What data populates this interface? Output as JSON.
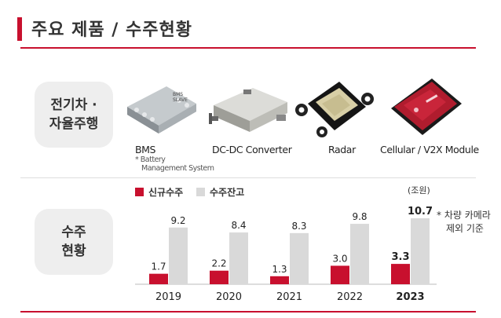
{
  "header": {
    "title": "주요 제품 / 수주현황"
  },
  "row_labels": {
    "products": [
      "전기차 ·",
      "자율주행"
    ],
    "orders": [
      "수주",
      "현황"
    ]
  },
  "products": [
    {
      "name": "BMS",
      "icon": "bms-module-icon"
    },
    {
      "name": "DC-DC Converter",
      "icon": "dc-dc-converter-icon"
    },
    {
      "name": "Radar",
      "icon": "radar-sensor-icon"
    },
    {
      "name": "Cellular / V2X Module",
      "icon": "v2x-module-icon"
    }
  ],
  "bms_chip_text": [
    "BMS",
    "SLAVE"
  ],
  "footnote": {
    "line1": "* Battery",
    "line2": "Management System"
  },
  "legend": {
    "new_orders": "신규수주",
    "backlog": "수주잔고"
  },
  "unit": "(조원)",
  "side_note": {
    "line1": "* 차량 카메라",
    "line2": "제외 기준"
  },
  "colors": {
    "accent": "#c8102e",
    "backlog": "#d9d9d9",
    "label_bg": "#eeeeee"
  },
  "chart_data": {
    "type": "bar",
    "categories": [
      "2019",
      "2020",
      "2021",
      "2022",
      "2023"
    ],
    "series": [
      {
        "name": "신규수주",
        "values": [
          1.7,
          2.2,
          1.3,
          3.0,
          3.3
        ]
      },
      {
        "name": "수주잔고",
        "values": [
          9.2,
          8.4,
          8.3,
          9.8,
          10.7
        ]
      }
    ],
    "value_labels": {
      "신규수주": [
        "1.7",
        "2.2",
        "1.3",
        "3.0",
        "3.3"
      ],
      "수주잔고": [
        "9.2",
        "8.4",
        "8.3",
        "9.8",
        "10.7"
      ]
    },
    "highlight_category": "2023",
    "ylim": [
      0,
      10.7
    ],
    "grid": false,
    "legend_position": "top-left"
  }
}
